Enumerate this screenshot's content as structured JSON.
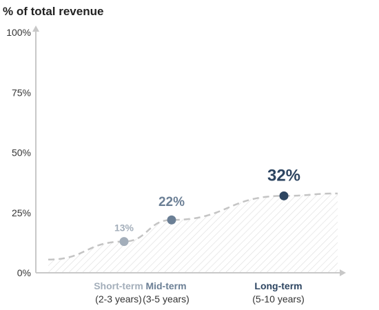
{
  "chart_data": {
    "type": "area",
    "title": "",
    "ylabel": "% of total revenue",
    "xlabel": "",
    "ylim": [
      0,
      100
    ],
    "y_ticks": [
      "0%",
      "25%",
      "50%",
      "75%",
      "100%"
    ],
    "y_tick_values": [
      0,
      25,
      50,
      75,
      100
    ],
    "grid": false,
    "curve": "dashed S-curve with hatched fill beneath",
    "points": [
      {
        "category": "Short-term",
        "sublabel": "(2-3 years)",
        "value": 13,
        "label": "13%",
        "color": "#a3aeba"
      },
      {
        "category": "Mid-term",
        "sublabel": "(3-5 years)",
        "value": 22,
        "label": "22%",
        "color": "#6b7f95"
      },
      {
        "category": "Long-term",
        "sublabel": "(5-10 years)",
        "value": 32,
        "label": "32%",
        "color": "#2d4561"
      }
    ],
    "colors": {
      "axis": "#c8c8c8",
      "curve": "#c4c4c4",
      "hatch": "#dcdcdc"
    }
  }
}
